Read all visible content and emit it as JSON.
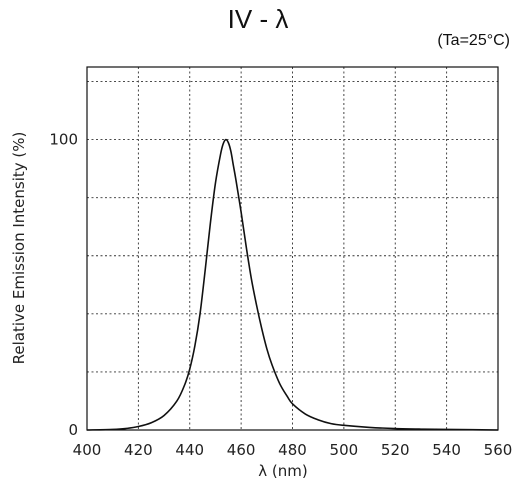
{
  "chart_data": {
    "type": "line",
    "title": "IV - λ",
    "condition": "(Ta=25°C)",
    "xlabel": "λ (nm)",
    "ylabel": "Relative Emission Intensity (%)",
    "xlim": [
      400,
      560
    ],
    "ylim": [
      0,
      125
    ],
    "grid": true,
    "x_ticks": [
      "400",
      "420",
      "440",
      "460",
      "480",
      "500",
      "520",
      "540",
      "560"
    ],
    "y_ticks": [
      {
        "label": "0",
        "value": 0
      },
      {
        "label": "100",
        "value": 100
      }
    ],
    "series": [
      {
        "x": [
          400,
          410,
          415,
          420,
          425,
          430,
          435,
          438,
          440,
          442,
          444,
          446,
          448,
          450,
          452,
          453,
          454,
          455,
          456,
          457,
          458,
          460,
          462,
          464,
          466,
          468,
          470,
          472,
          475,
          478,
          480,
          485,
          490,
          495,
          500,
          510,
          520,
          530,
          540,
          550,
          560
        ],
        "y": [
          0,
          0.2,
          0.5,
          1.2,
          2.5,
          5,
          10,
          15.5,
          21,
          29,
          40,
          55,
          71,
          85,
          95,
          98.5,
          100,
          99,
          96,
          91,
          86,
          75,
          63,
          52,
          43,
          35,
          28,
          22.5,
          16,
          11.5,
          9,
          5.5,
          3.5,
          2.2,
          1.6,
          0.9,
          0.5,
          0.3,
          0.2,
          0.1,
          0
        ]
      }
    ]
  }
}
